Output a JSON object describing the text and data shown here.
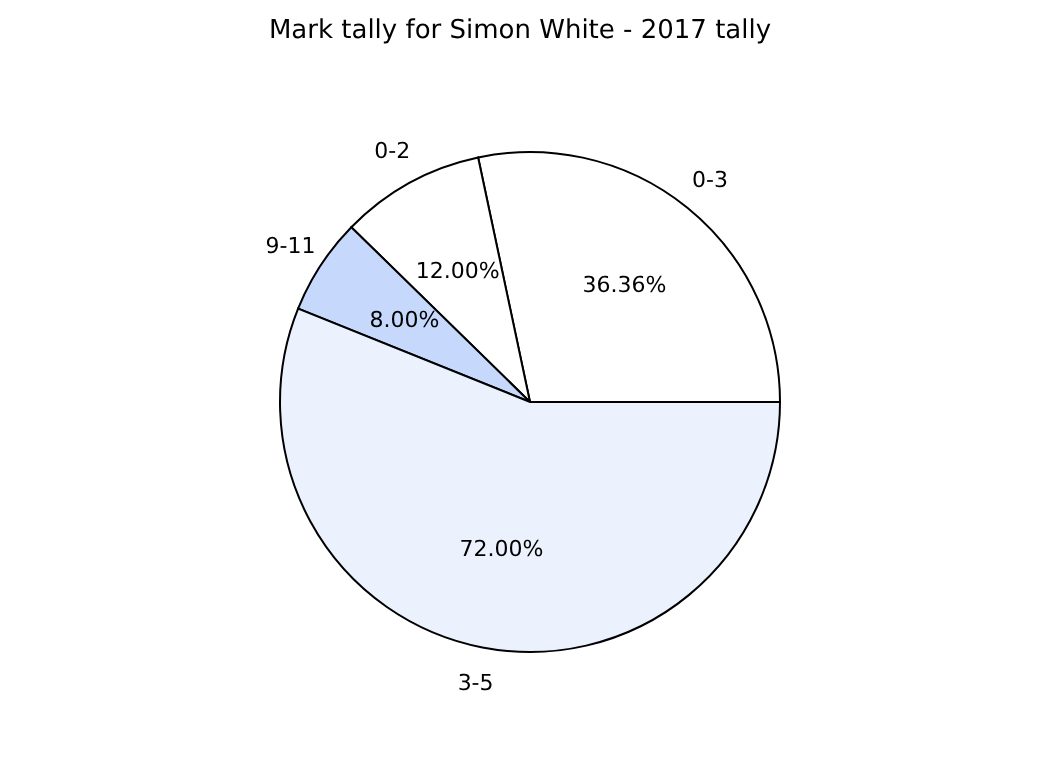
{
  "chart_data": {
    "type": "pie",
    "title": "Mark tally for Simon White - 2017 tally",
    "categories": [
      "0-3",
      "0-2",
      "9-11",
      "3-5"
    ],
    "values": [
      36.36,
      12,
      8,
      72
    ],
    "value_labels": [
      "36.36%",
      "12.00%",
      "8.00%",
      "72.00%"
    ],
    "colors": [
      "#ffffff",
      "#ffffff",
      "#c6d9fd",
      "#ebf1fd"
    ],
    "legend": false
  }
}
